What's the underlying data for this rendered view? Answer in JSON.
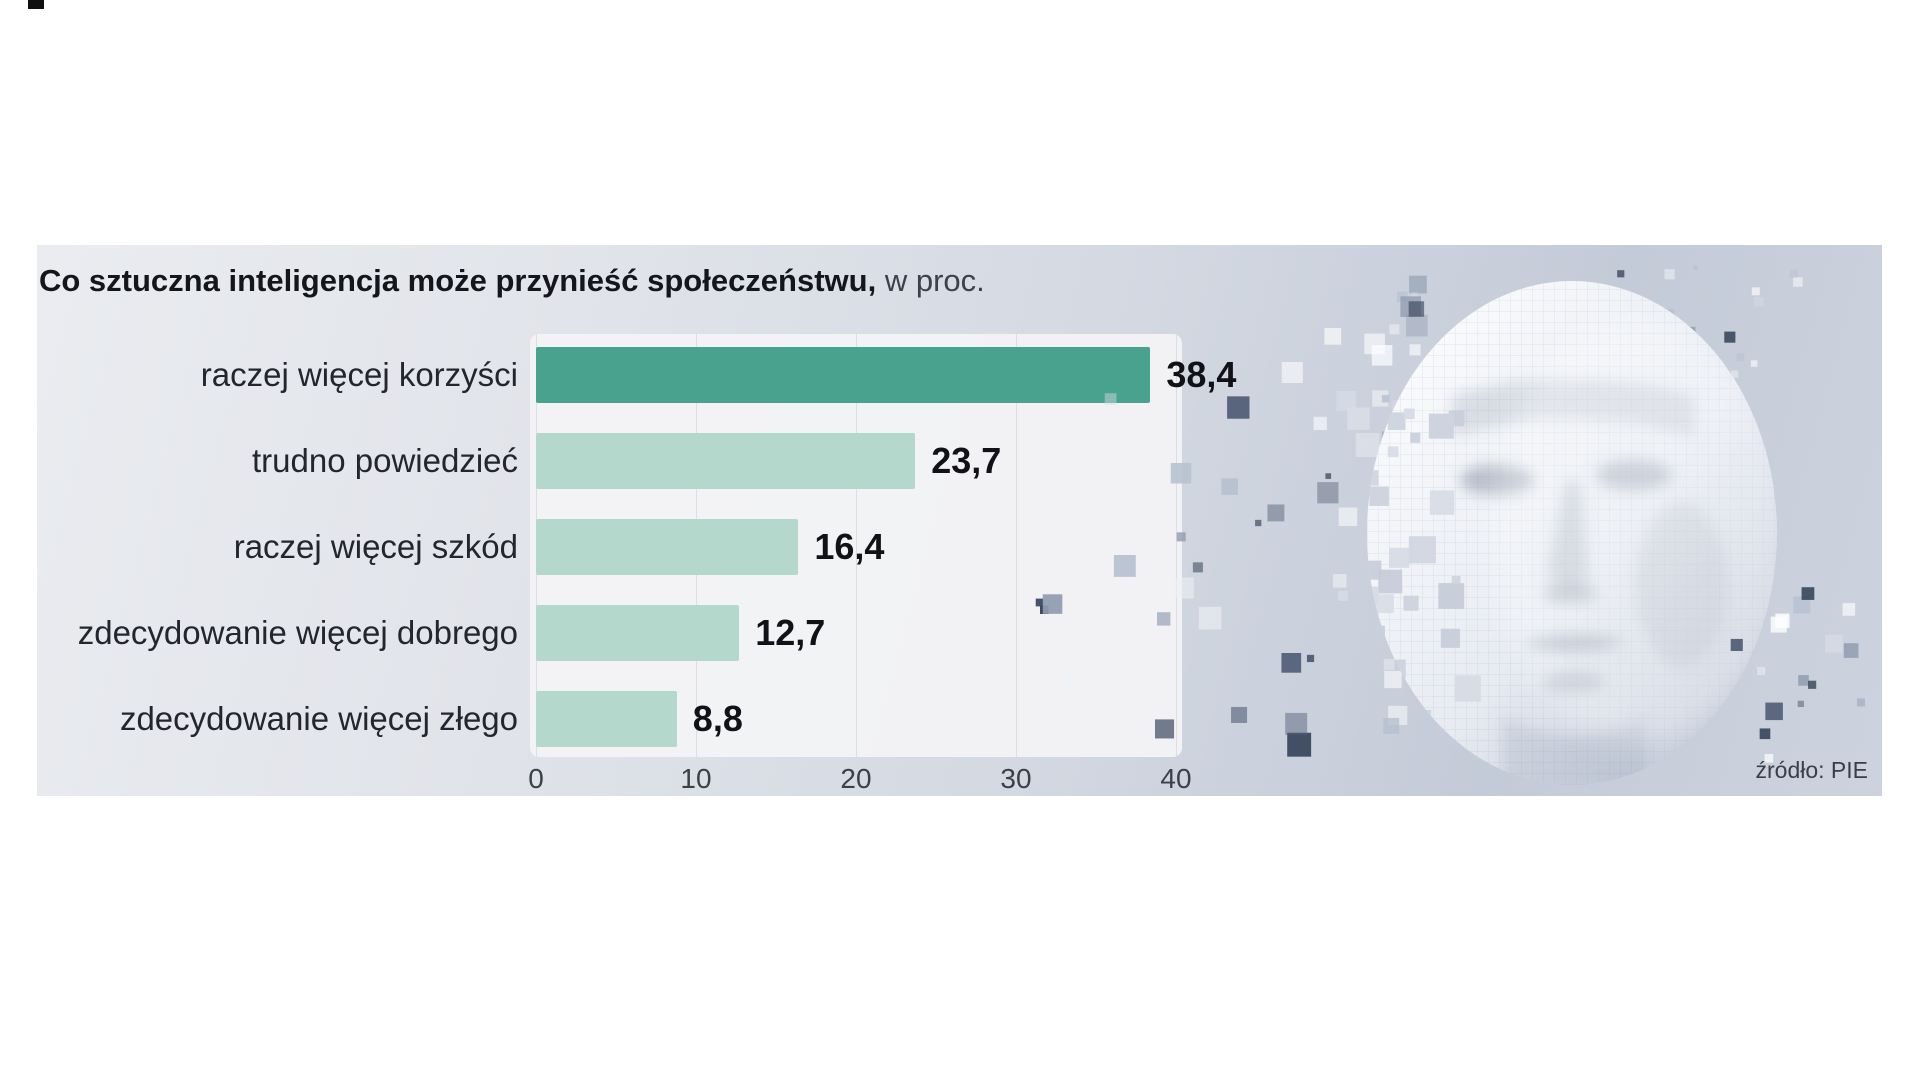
{
  "title": {
    "bold": "Co sztuczna inteligencja może przynieść społeczeństwu,",
    "suffix": " w proc."
  },
  "source": "źródło: PIE",
  "chart_data": {
    "type": "bar",
    "orientation": "horizontal",
    "title": "Co sztuczna inteligencja może przynieść społeczeństwu, w proc.",
    "categories": [
      "raczej więcej korzyści",
      "trudno powiedzieć",
      "raczej więcej szkód",
      "zdecydowanie więcej dobrego",
      "zdecydowanie więcej złego"
    ],
    "values": [
      38.4,
      23.7,
      16.4,
      12.7,
      8.8
    ],
    "value_labels": [
      "38,4",
      "23,7",
      "16,4",
      "12,7",
      "8,8"
    ],
    "xlim": [
      0,
      40
    ],
    "xticks": [
      0,
      10,
      20,
      30,
      40
    ],
    "grid": true,
    "legend": "none",
    "bar_colors": [
      "#49a28d",
      "#b4d8cb",
      "#b4d8cb",
      "#b4d8cb",
      "#b4d8cb"
    ],
    "accent_color": "#49a28d",
    "muted_bar_color": "#b4d8cb",
    "source": "źródło: PIE"
  }
}
